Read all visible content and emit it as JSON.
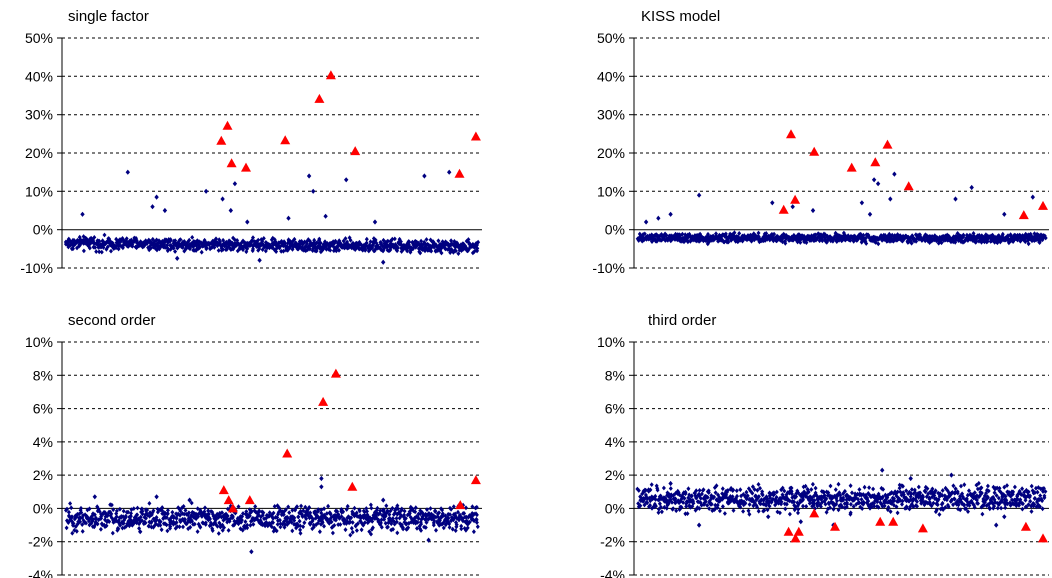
{
  "colors": {
    "series": "#000080",
    "highlight": "#ff0000",
    "axis": "#000000"
  },
  "chart_data": [
    {
      "type": "scatter",
      "title": "single factor",
      "xlabel": "",
      "ylabel": "",
      "ylim": [
        -0.1,
        0.5
      ],
      "y_ticks": [
        -0.1,
        0,
        0.1,
        0.2,
        0.3,
        0.4,
        0.5
      ],
      "y_tick_labels": [
        "-10%",
        "0%",
        "10%",
        "20%",
        "30%",
        "40%",
        "50%"
      ],
      "grid": "horizontal-dashed",
      "legend": "none",
      "dots": {
        "n": 1000,
        "base_start": -0.035,
        "base_end": -0.045,
        "band": 0.018
      },
      "outliers": [
        [
          0.21,
          0.06
        ],
        [
          0.24,
          0.05
        ],
        [
          0.04,
          0.04
        ],
        [
          0.15,
          0.15
        ],
        [
          0.22,
          0.085
        ],
        [
          0.34,
          0.1
        ],
        [
          0.38,
          0.08
        ],
        [
          0.4,
          0.05
        ],
        [
          0.41,
          0.12
        ],
        [
          0.44,
          0.02
        ],
        [
          0.54,
          0.03
        ],
        [
          0.59,
          0.14
        ],
        [
          0.6,
          0.1
        ],
        [
          0.63,
          0.035
        ],
        [
          0.68,
          0.13
        ],
        [
          0.75,
          0.02
        ],
        [
          0.77,
          -0.085
        ],
        [
          0.87,
          0.14
        ],
        [
          0.93,
          0.15
        ],
        [
          0.27,
          -0.075
        ],
        [
          0.47,
          -0.08
        ]
      ],
      "highlights": [
        [
          0.377,
          0.232
        ],
        [
          0.392,
          0.271
        ],
        [
          0.402,
          0.173
        ],
        [
          0.437,
          0.162
        ],
        [
          0.532,
          0.233
        ],
        [
          0.615,
          0.341
        ],
        [
          0.643,
          0.403
        ],
        [
          0.702,
          0.205
        ],
        [
          0.955,
          0.146
        ],
        [
          0.995,
          0.243
        ]
      ]
    },
    {
      "type": "scatter",
      "title": "KISS model",
      "xlabel": "",
      "ylabel": "",
      "ylim": [
        -0.1,
        0.5
      ],
      "y_ticks": [
        -0.1,
        0,
        0.1,
        0.2,
        0.3,
        0.4,
        0.5
      ],
      "y_tick_labels": [
        "-10%",
        "0%",
        "10%",
        "20%",
        "30%",
        "40%",
        "50%"
      ],
      "grid": "horizontal-dashed",
      "legend": "none",
      "dots": {
        "n": 1000,
        "base_start": -0.022,
        "base_end": -0.022,
        "band": 0.012
      },
      "outliers": [
        [
          0.02,
          0.02
        ],
        [
          0.05,
          0.03
        ],
        [
          0.08,
          0.04
        ],
        [
          0.15,
          0.09
        ],
        [
          0.33,
          0.07
        ],
        [
          0.38,
          0.06
        ],
        [
          0.43,
          0.05
        ],
        [
          0.55,
          0.07
        ],
        [
          0.57,
          0.04
        ],
        [
          0.58,
          0.13
        ],
        [
          0.59,
          0.12
        ],
        [
          0.62,
          0.08
        ],
        [
          0.63,
          0.145
        ],
        [
          0.78,
          0.08
        ],
        [
          0.82,
          0.11
        ],
        [
          0.97,
          0.085
        ],
        [
          0.9,
          0.04
        ]
      ],
      "highlights": [
        [
          0.358,
          0.052
        ],
        [
          0.376,
          0.249
        ],
        [
          0.386,
          0.078
        ],
        [
          0.433,
          0.203
        ],
        [
          0.525,
          0.162
        ],
        [
          0.583,
          0.176
        ],
        [
          0.613,
          0.222
        ],
        [
          0.665,
          0.113
        ],
        [
          0.948,
          0.038
        ],
        [
          0.995,
          0.062
        ]
      ]
    },
    {
      "type": "scatter",
      "title": "second order",
      "xlabel": "",
      "ylabel": "",
      "ylim": [
        -0.04,
        0.1
      ],
      "y_ticks": [
        -0.04,
        -0.02,
        0,
        0.02,
        0.04,
        0.06,
        0.08,
        0.1
      ],
      "y_tick_labels": [
        "-4%",
        "-2%",
        "0%",
        "2%",
        "4%",
        "6%",
        "8%",
        "10%"
      ],
      "grid": "horizontal-dashed",
      "legend": "none",
      "dots": {
        "n": 1000,
        "base_start": -0.006,
        "base_end": -0.006,
        "band": 0.008
      },
      "outliers": [
        [
          0.07,
          0.007
        ],
        [
          0.22,
          0.007
        ],
        [
          0.45,
          -0.026
        ],
        [
          0.62,
          0.018
        ],
        [
          0.62,
          0.013
        ],
        [
          0.88,
          -0.019
        ],
        [
          0.3,
          0.005
        ],
        [
          0.77,
          0.005
        ],
        [
          0.18,
          -0.014
        ]
      ],
      "highlights": [
        [
          0.383,
          0.011
        ],
        [
          0.395,
          0.005
        ],
        [
          0.405,
          0.0
        ],
        [
          0.446,
          0.005
        ],
        [
          0.537,
          0.033
        ],
        [
          0.624,
          0.064
        ],
        [
          0.655,
          0.081
        ],
        [
          0.695,
          0.013
        ],
        [
          0.957,
          0.002
        ],
        [
          0.995,
          0.017
        ]
      ]
    },
    {
      "type": "scatter",
      "title": "third order",
      "xlabel": "",
      "ylabel": "",
      "ylim": [
        -0.04,
        0.1
      ],
      "y_ticks": [
        -0.04,
        -0.02,
        0,
        0.02,
        0.04,
        0.06,
        0.08,
        0.1
      ],
      "y_tick_labels": [
        "-4%",
        "-2%",
        "0%",
        "2%",
        "4%",
        "6%",
        "8%",
        "10%"
      ],
      "grid": "horizontal-dashed",
      "legend": "none",
      "dots": {
        "n": 1000,
        "base_start": 0.005,
        "base_end": 0.006,
        "band": 0.008
      },
      "outliers": [
        [
          0.15,
          -0.01
        ],
        [
          0.48,
          -0.01
        ],
        [
          0.6,
          0.023
        ],
        [
          0.67,
          0.018
        ],
        [
          0.77,
          0.02
        ],
        [
          0.88,
          -0.01
        ],
        [
          0.9,
          -0.005
        ],
        [
          0.08,
          0.015
        ],
        [
          0.32,
          -0.005
        ],
        [
          0.4,
          -0.008
        ]
      ],
      "highlights": [
        [
          0.37,
          -0.014
        ],
        [
          0.387,
          -0.018
        ],
        [
          0.395,
          -0.014
        ],
        [
          0.433,
          -0.003
        ],
        [
          0.484,
          -0.011
        ],
        [
          0.595,
          -0.008
        ],
        [
          0.627,
          -0.008
        ],
        [
          0.7,
          -0.012
        ],
        [
          0.953,
          -0.011
        ],
        [
          0.995,
          -0.018
        ]
      ]
    }
  ]
}
